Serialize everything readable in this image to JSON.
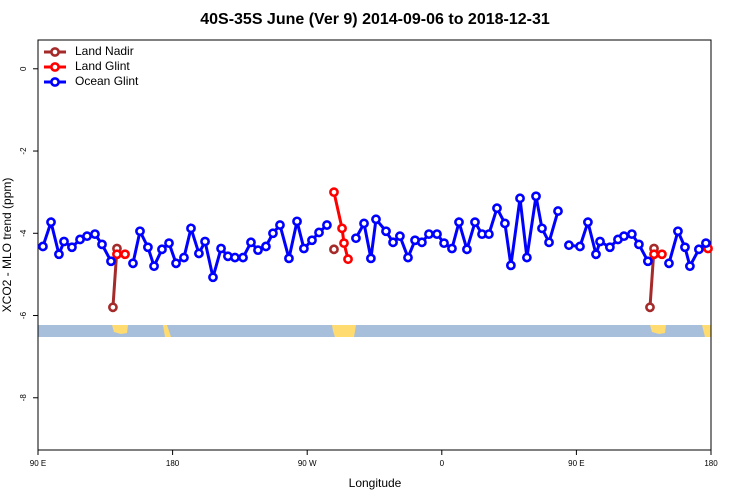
{
  "chart_data": {
    "type": "line",
    "title": "40S-35S June (Ver 9)   2014-09-06 to 2018-12-31",
    "x_label": "Longitude",
    "y_label": "XCO2 - MLO trend (ppm)",
    "xlim": [
      90,
      540
    ],
    "ylim": [
      -9.27,
      0.7
    ],
    "xticks": [
      {
        "value": 90,
        "label": "90 E"
      },
      {
        "value": 180,
        "label": "180"
      },
      {
        "value": 270,
        "label": "90 W"
      },
      {
        "value": 360,
        "label": "0"
      },
      {
        "value": 450,
        "label": "90 E"
      },
      {
        "value": 540,
        "label": "180"
      }
    ],
    "yticks": [
      0,
      -2,
      -4,
      -6,
      -8
    ],
    "legend": "top-left",
    "series": [
      {
        "name": "Land Nadir",
        "color": "#a52a2a",
        "x": [
          140.1,
          142.8,
          null,
          287.9,
          null,
          499.2,
          501.9
        ],
        "values": [
          -5.8,
          -4.37,
          null,
          -4.39,
          null,
          -5.8,
          -4.37
        ]
      },
      {
        "name": "Land Glint",
        "color": "#ff0000",
        "x": [
          142.8,
          148.2,
          null,
          287.9,
          293.3,
          294.6,
          297.3,
          null,
          501.9,
          507.2,
          null,
          538.0
        ],
        "values": [
          -4.51,
          -4.51,
          null,
          -3.0,
          -3.88,
          -4.24,
          -4.63,
          null,
          -4.51,
          -4.51,
          null,
          -4.37
        ]
      },
      {
        "name": "Ocean Glint",
        "color": "#0000ff",
        "x": [
          93.3,
          98.7,
          104.0,
          107.4,
          112.7,
          118.1,
          122.8,
          128.1,
          132.8,
          138.8,
          null,
          153.5,
          158.2,
          163.5,
          167.6,
          172.9,
          177.6,
          182.3,
          187.6,
          192.3,
          197.6,
          201.7,
          207.0,
          212.4,
          217.0,
          221.7,
          227.1,
          232.4,
          237.1,
          242.4,
          247.1,
          251.8,
          257.8,
          263.2,
          267.8,
          273.2,
          277.9,
          283.2,
          null,
          302.6,
          308.0,
          312.6,
          316.0,
          322.7,
          327.4,
          332.0,
          337.4,
          342.1,
          346.7,
          351.4,
          356.8,
          361.5,
          366.8,
          371.5,
          376.8,
          382.2,
          386.9,
          391.5,
          396.9,
          402.2,
          406.2,
          412.3,
          416.9,
          423.0,
          427.0,
          431.7,
          437.7,
          null,
          445.0,
          452.4,
          457.7,
          463.1,
          465.8,
          472.4,
          477.8,
          481.8,
          487.1,
          491.8,
          497.8,
          null,
          511.9,
          517.9,
          522.6,
          525.9,
          531.9,
          536.6
        ],
        "values": [
          -4.32,
          -3.73,
          -4.51,
          -4.2,
          -4.34,
          -4.15,
          -4.07,
          -4.02,
          -4.27,
          -4.68,
          null,
          -4.73,
          -3.95,
          -4.34,
          -4.8,
          -4.39,
          -4.24,
          -4.73,
          -4.59,
          -3.88,
          -4.49,
          -4.2,
          -5.07,
          -4.37,
          -4.56,
          -4.59,
          -4.59,
          -4.22,
          -4.41,
          -4.32,
          -4.0,
          -3.8,
          -4.61,
          -3.71,
          -4.37,
          -4.17,
          -3.98,
          -3.8,
          null,
          -4.12,
          -3.76,
          -4.61,
          -3.66,
          -3.95,
          -4.22,
          -4.07,
          -4.59,
          -4.17,
          -4.22,
          -4.02,
          -4.02,
          -4.24,
          -4.37,
          -3.73,
          -4.39,
          -3.73,
          -4.02,
          -4.02,
          -3.39,
          -3.76,
          -4.78,
          -3.15,
          -4.59,
          -3.1,
          -3.88,
          -4.22,
          -3.46,
          null,
          -4.29,
          -4.32,
          -3.73,
          -4.51,
          -4.2,
          -4.34,
          -4.15,
          -4.07,
          -4.02,
          -4.27,
          -4.68,
          null,
          -4.73,
          -3.95,
          -4.34,
          -4.8,
          -4.39,
          -4.24
        ]
      }
    ]
  }
}
